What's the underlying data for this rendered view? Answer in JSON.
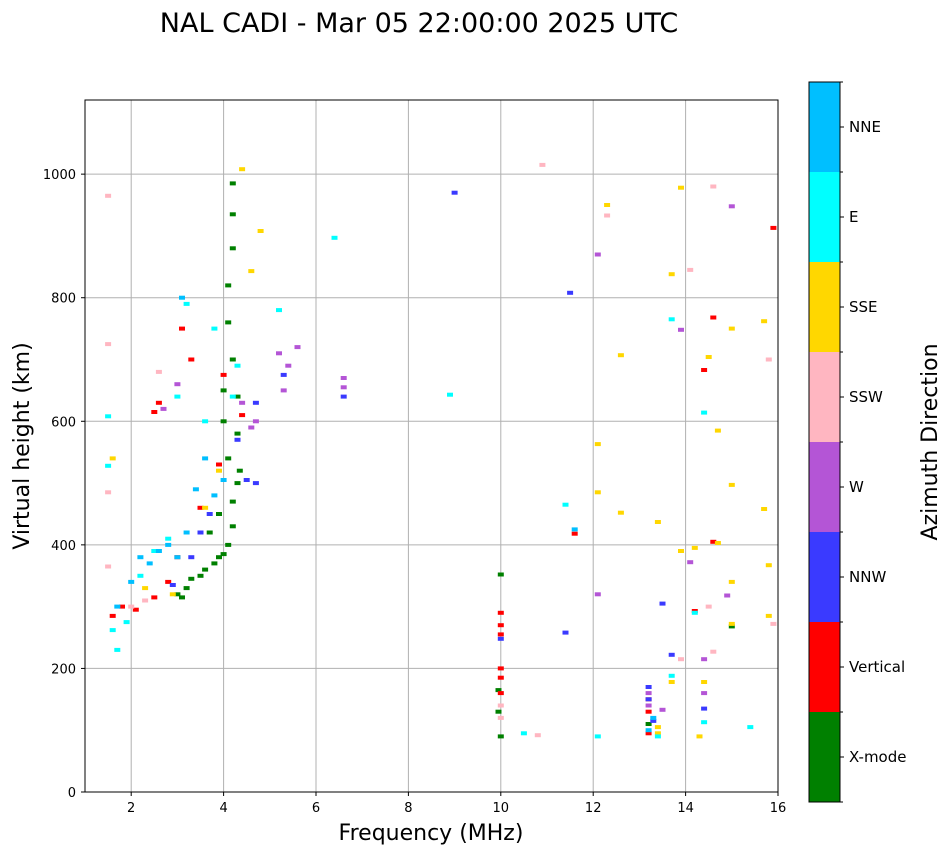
{
  "chart_data": {
    "type": "scatter",
    "title": "NAL CADI - Mar 05 22:00:00 2025 UTC",
    "xlabel": "Frequency (MHz)",
    "ylabel": "Virtual height (km)",
    "xlim": [
      1,
      16
    ],
    "ylim": [
      0,
      1120
    ],
    "xticks": [
      2,
      4,
      6,
      8,
      10,
      12,
      14,
      16
    ],
    "yticks": [
      0,
      200,
      400,
      600,
      800,
      1000
    ],
    "grid": true,
    "colorbar": {
      "label": "Azimuth Direction",
      "categories": [
        {
          "name": "X-mode",
          "color": "#008000"
        },
        {
          "name": "Vertical",
          "color": "#ff0000"
        },
        {
          "name": "NNW",
          "color": "#3a3aff"
        },
        {
          "name": "W",
          "color": "#b455d6"
        },
        {
          "name": "SSW",
          "color": "#ffb6c1"
        },
        {
          "name": "SSE",
          "color": "#ffd700"
        },
        {
          "name": "E",
          "color": "#00ffff"
        },
        {
          "name": "NNE",
          "color": "#00bfff"
        }
      ]
    },
    "series": [
      {
        "name": "X-mode",
        "points": [
          [
            3.3,
            345
          ],
          [
            3.5,
            350
          ],
          [
            3.6,
            360
          ],
          [
            3.8,
            370
          ],
          [
            3.9,
            380
          ],
          [
            4.0,
            385
          ],
          [
            4.1,
            400
          ],
          [
            4.2,
            430
          ],
          [
            4.2,
            470
          ],
          [
            4.3,
            500
          ],
          [
            4.1,
            540
          ],
          [
            4.3,
            580
          ],
          [
            4.0,
            650
          ],
          [
            4.2,
            700
          ],
          [
            4.1,
            760
          ],
          [
            4.1,
            820
          ],
          [
            4.2,
            880
          ],
          [
            4.2,
            935
          ],
          [
            4.2,
            985
          ],
          [
            3.0,
            320
          ],
          [
            3.2,
            330
          ],
          [
            3.1,
            315
          ],
          [
            10.0,
            352
          ],
          [
            10.0,
            90
          ],
          [
            9.95,
            130
          ],
          [
            9.95,
            165
          ],
          [
            13.2,
            110
          ],
          [
            15.0,
            268
          ],
          [
            3.7,
            420
          ],
          [
            3.9,
            450
          ],
          [
            4.35,
            520
          ],
          [
            4.0,
            600
          ],
          [
            4.3,
            640
          ]
        ]
      },
      {
        "name": "Vertical",
        "points": [
          [
            1.6,
            285
          ],
          [
            1.8,
            300
          ],
          [
            2.1,
            295
          ],
          [
            2.5,
            315
          ],
          [
            2.8,
            340
          ],
          [
            3.0,
            380
          ],
          [
            2.6,
            630
          ],
          [
            2.5,
            615
          ],
          [
            3.1,
            750
          ],
          [
            3.5,
            460
          ],
          [
            3.9,
            530
          ],
          [
            4.0,
            675
          ],
          [
            3.3,
            700
          ],
          [
            4.4,
            610
          ],
          [
            10.0,
            290
          ],
          [
            10.0,
            270
          ],
          [
            10.0,
            255
          ],
          [
            10.0,
            200
          ],
          [
            10.0,
            185
          ],
          [
            10.0,
            160
          ],
          [
            11.6,
            418
          ],
          [
            13.2,
            95
          ],
          [
            13.2,
            130
          ],
          [
            13.2,
            150
          ],
          [
            14.2,
            293
          ],
          [
            14.4,
            683
          ],
          [
            14.6,
            405
          ],
          [
            15.9,
            913
          ],
          [
            14.6,
            768
          ]
        ]
      },
      {
        "name": "NNW",
        "points": [
          [
            2.9,
            335
          ],
          [
            3.3,
            380
          ],
          [
            3.5,
            420
          ],
          [
            3.7,
            450
          ],
          [
            4.5,
            505
          ],
          [
            4.7,
            500
          ],
          [
            4.3,
            570
          ],
          [
            4.7,
            630
          ],
          [
            5.3,
            675
          ],
          [
            6.6,
            640
          ],
          [
            9.0,
            970
          ],
          [
            10.0,
            248
          ],
          [
            11.4,
            258
          ],
          [
            11.5,
            808
          ],
          [
            13.5,
            305
          ],
          [
            13.7,
            222
          ],
          [
            14.4,
            135
          ],
          [
            13.2,
            170
          ],
          [
            13.2,
            150
          ],
          [
            13.3,
            115
          ]
        ]
      },
      {
        "name": "W",
        "points": [
          [
            2.7,
            620
          ],
          [
            3.0,
            660
          ],
          [
            4.4,
            630
          ],
          [
            4.6,
            590
          ],
          [
            4.7,
            600
          ],
          [
            5.2,
            710
          ],
          [
            5.4,
            690
          ],
          [
            5.6,
            720
          ],
          [
            5.3,
            650
          ],
          [
            6.6,
            670
          ],
          [
            6.6,
            655
          ],
          [
            12.1,
            870
          ],
          [
            12.1,
            320
          ],
          [
            13.5,
            133
          ],
          [
            13.9,
            748
          ],
          [
            14.1,
            372
          ],
          [
            14.4,
            215
          ],
          [
            14.4,
            160
          ],
          [
            14.9,
            318
          ],
          [
            15.0,
            948
          ],
          [
            13.2,
            160
          ],
          [
            13.2,
            140
          ]
        ]
      },
      {
        "name": "SSW",
        "points": [
          [
            1.5,
            965
          ],
          [
            1.5,
            725
          ],
          [
            1.5,
            485
          ],
          [
            1.5,
            365
          ],
          [
            2.0,
            300
          ],
          [
            2.3,
            310
          ],
          [
            2.6,
            680
          ],
          [
            10.0,
            120
          ],
          [
            10.0,
            140
          ],
          [
            10.8,
            92
          ],
          [
            10.9,
            1015
          ],
          [
            12.3,
            933
          ],
          [
            14.1,
            845
          ],
          [
            14.6,
            980
          ],
          [
            14.5,
            300
          ],
          [
            14.6,
            227
          ],
          [
            15.8,
            700
          ],
          [
            15.9,
            272
          ],
          [
            13.9,
            215
          ]
        ]
      },
      {
        "name": "SSE",
        "points": [
          [
            1.6,
            540
          ],
          [
            2.3,
            330
          ],
          [
            2.9,
            320
          ],
          [
            3.6,
            460
          ],
          [
            3.9,
            520
          ],
          [
            4.4,
            1008
          ],
          [
            4.6,
            843
          ],
          [
            4.8,
            908
          ],
          [
            12.1,
            563
          ],
          [
            12.1,
            485
          ],
          [
            12.3,
            950
          ],
          [
            12.6,
            707
          ],
          [
            12.6,
            452
          ],
          [
            13.4,
            437
          ],
          [
            13.7,
            838
          ],
          [
            13.9,
            978
          ],
          [
            13.9,
            390
          ],
          [
            14.2,
            395
          ],
          [
            14.3,
            90
          ],
          [
            14.5,
            704
          ],
          [
            14.7,
            585
          ],
          [
            14.7,
            403
          ],
          [
            15.0,
            750
          ],
          [
            15.0,
            497
          ],
          [
            15.0,
            340
          ],
          [
            15.0,
            272
          ],
          [
            15.7,
            762
          ],
          [
            15.7,
            458
          ],
          [
            15.8,
            367
          ],
          [
            15.8,
            285
          ],
          [
            13.7,
            178
          ],
          [
            14.4,
            178
          ],
          [
            13.4,
            105
          ],
          [
            13.4,
            95
          ]
        ]
      },
      {
        "name": "E",
        "points": [
          [
            1.5,
            608
          ],
          [
            1.5,
            528
          ],
          [
            1.6,
            262
          ],
          [
            1.7,
            230
          ],
          [
            1.9,
            275
          ],
          [
            2.2,
            350
          ],
          [
            2.5,
            390
          ],
          [
            2.8,
            410
          ],
          [
            3.0,
            640
          ],
          [
            3.2,
            790
          ],
          [
            3.6,
            600
          ],
          [
            3.8,
            750
          ],
          [
            4.2,
            640
          ],
          [
            4.3,
            690
          ],
          [
            5.2,
            780
          ],
          [
            6.4,
            897
          ],
          [
            8.9,
            643
          ],
          [
            10.5,
            95
          ],
          [
            11.4,
            465
          ],
          [
            12.1,
            90
          ],
          [
            13.4,
            90
          ],
          [
            13.7,
            765
          ],
          [
            13.7,
            188
          ],
          [
            14.2,
            290
          ],
          [
            14.4,
            614
          ],
          [
            14.4,
            113
          ],
          [
            15.4,
            105
          ]
        ]
      },
      {
        "name": "NNE",
        "points": [
          [
            1.7,
            300
          ],
          [
            2.0,
            340
          ],
          [
            2.2,
            380
          ],
          [
            2.4,
            370
          ],
          [
            2.6,
            390
          ],
          [
            2.8,
            400
          ],
          [
            3.0,
            380
          ],
          [
            3.2,
            420
          ],
          [
            3.4,
            490
          ],
          [
            3.6,
            540
          ],
          [
            3.1,
            800
          ],
          [
            3.8,
            480
          ],
          [
            4.0,
            505
          ],
          [
            11.6,
            425
          ],
          [
            13.2,
            100
          ],
          [
            13.3,
            120
          ]
        ]
      }
    ]
  }
}
